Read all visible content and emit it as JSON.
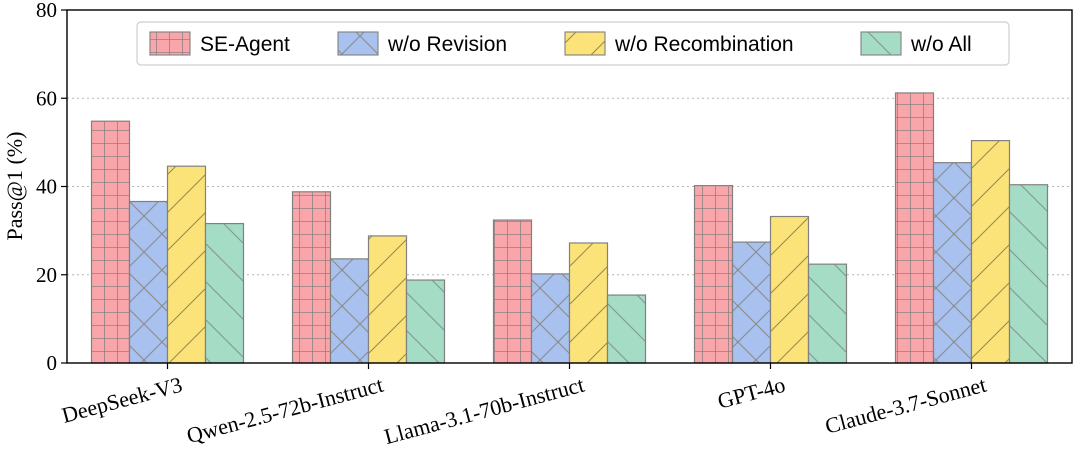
{
  "chart_data": {
    "type": "bar",
    "title": "",
    "xlabel": "",
    "ylabel": "Pass@1 (%)",
    "ylim": [
      0,
      80
    ],
    "yticks": [
      0,
      20,
      40,
      60,
      80
    ],
    "grid": "y-dotted",
    "legend_position": "top-center",
    "categories": [
      "DeepSeek-V3",
      "Qwen-2.5-72b-Instruct",
      "Llama-3.1-70b-Instruct",
      "GPT-4o",
      "Claude-3.7-Sonnet"
    ],
    "series": [
      {
        "name": "SE-Agent",
        "values": [
          54.8,
          38.8,
          32.4,
          40.2,
          61.2
        ],
        "color": "#f8a6aa",
        "pattern": "grid"
      },
      {
        "name": "w/o Revision",
        "values": [
          36.6,
          23.6,
          20.2,
          27.4,
          45.4
        ],
        "color": "#a9c1ee",
        "pattern": "cross"
      },
      {
        "name": "w/o Recombination",
        "values": [
          44.6,
          28.8,
          27.2,
          33.2,
          50.4
        ],
        "color": "#fbe37a",
        "pattern": "forward-slash"
      },
      {
        "name": "w/o All",
        "values": [
          31.6,
          18.8,
          15.4,
          22.4,
          40.4
        ],
        "color": "#a4dcc6",
        "pattern": "back-slash"
      }
    ]
  }
}
